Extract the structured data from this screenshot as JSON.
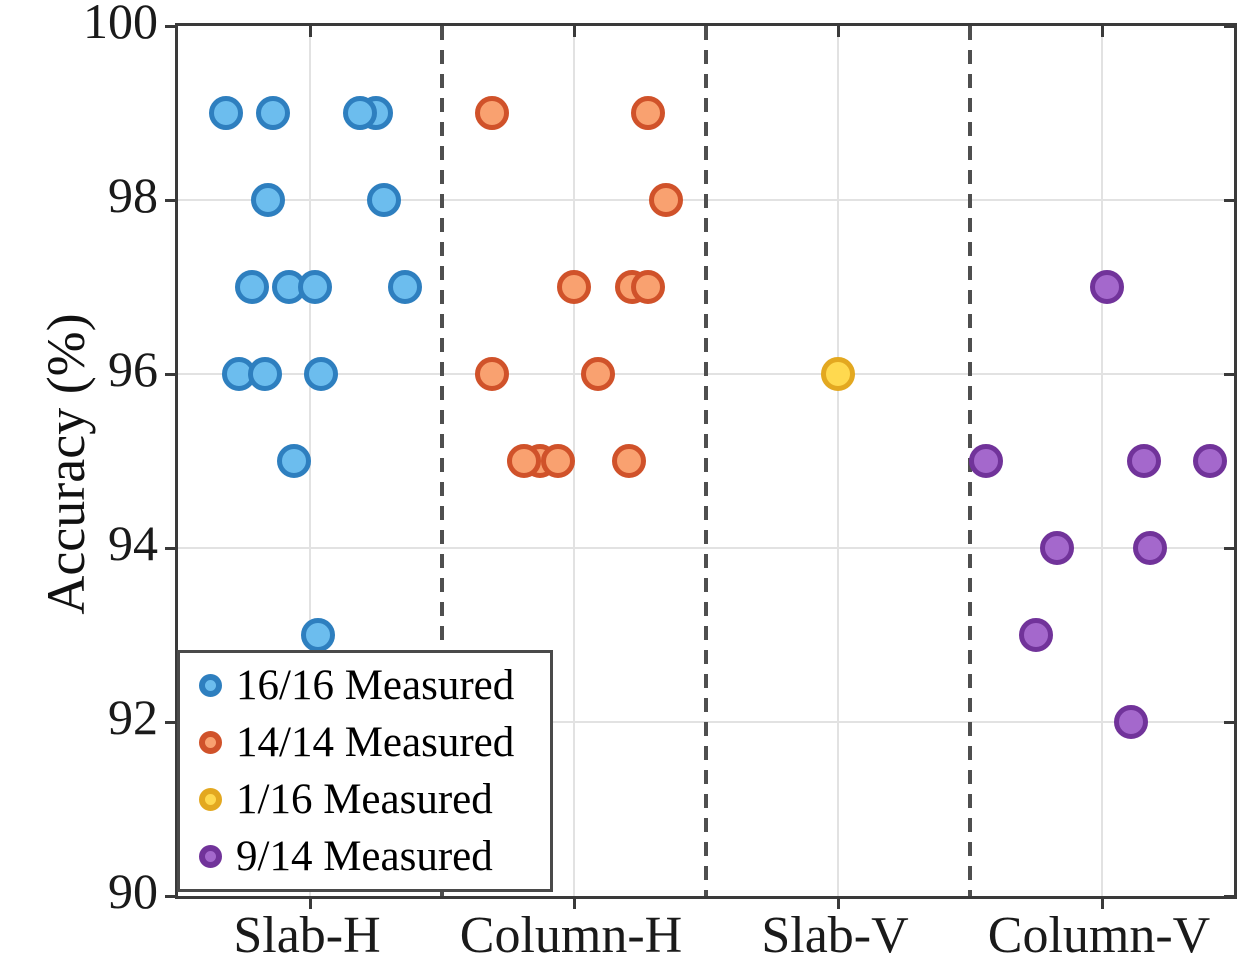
{
  "axes": {
    "ylabel": "Accuracy (%)",
    "yticks": [
      100,
      98,
      96,
      94,
      92,
      90
    ],
    "ylim": [
      90,
      100
    ],
    "categories": [
      "Slab-H",
      "Column-H",
      "Slab-V",
      "Column-V"
    ]
  },
  "legend": {
    "items": [
      {
        "label": "16/16 Measured",
        "fill": "#6CBDEE",
        "edge": "#2E7FBF"
      },
      {
        "label": "14/14 Measured",
        "fill": "#F9A170",
        "edge": "#D0522A"
      },
      {
        "label": "1/16 Measured",
        "fill": "#FFD94F",
        "edge": "#E3A820"
      },
      {
        "label": "9/14 Measured",
        "fill": "#A468CC",
        "edge": "#71339A"
      }
    ]
  },
  "chart_data": {
    "type": "scatter",
    "title": "",
    "xlabel": "",
    "ylabel": "Accuracy (%)",
    "ylim": [
      90,
      100
    ],
    "yticks": [
      100,
      98,
      96,
      94,
      92,
      90
    ],
    "grid": true,
    "legend_position": "bottom-left",
    "categories": [
      "Slab-H",
      "Column-H",
      "Slab-V",
      "Column-V"
    ],
    "category_x": [
      1,
      2,
      3,
      4
    ],
    "separators_x": [
      1.5,
      2.5,
      3.5
    ],
    "series": [
      {
        "name": "16/16 Measured",
        "category": "Slab-H",
        "fill": "#6CBDEE",
        "edge": "#2E7FBF",
        "points": [
          [
            0.68,
            99
          ],
          [
            0.86,
            99
          ],
          [
            1.25,
            99
          ],
          [
            1.19,
            99
          ],
          [
            0.84,
            98
          ],
          [
            1.28,
            98
          ],
          [
            0.78,
            97
          ],
          [
            0.92,
            97
          ],
          [
            1.02,
            97
          ],
          [
            1.36,
            97
          ],
          [
            0.73,
            96
          ],
          [
            0.83,
            96
          ],
          [
            1.04,
            96
          ],
          [
            0.94,
            95
          ],
          [
            1.03,
            93
          ]
        ]
      },
      {
        "name": "14/14 Measured",
        "category": "Column-H",
        "fill": "#F9A170",
        "edge": "#D0522A",
        "points": [
          [
            1.69,
            99
          ],
          [
            2.28,
            99
          ],
          [
            2.35,
            98
          ],
          [
            2.0,
            97
          ],
          [
            2.22,
            97
          ],
          [
            2.28,
            97
          ],
          [
            1.69,
            96
          ],
          [
            2.09,
            96
          ],
          [
            1.87,
            95
          ],
          [
            1.81,
            95
          ],
          [
            1.94,
            95
          ],
          [
            2.21,
            95
          ]
        ]
      },
      {
        "name": "1/16 Measured",
        "category": "Slab-V",
        "fill": "#FFD94F",
        "edge": "#E3A820",
        "points": [
          [
            3.0,
            96
          ]
        ]
      },
      {
        "name": "9/14 Measured",
        "category": "Column-V",
        "fill": "#A468CC",
        "edge": "#71339A",
        "points": [
          [
            4.02,
            97
          ],
          [
            3.56,
            95
          ],
          [
            4.16,
            95
          ],
          [
            4.41,
            95
          ],
          [
            3.83,
            94
          ],
          [
            4.18,
            94
          ],
          [
            3.75,
            93
          ],
          [
            4.11,
            92
          ]
        ]
      }
    ]
  }
}
